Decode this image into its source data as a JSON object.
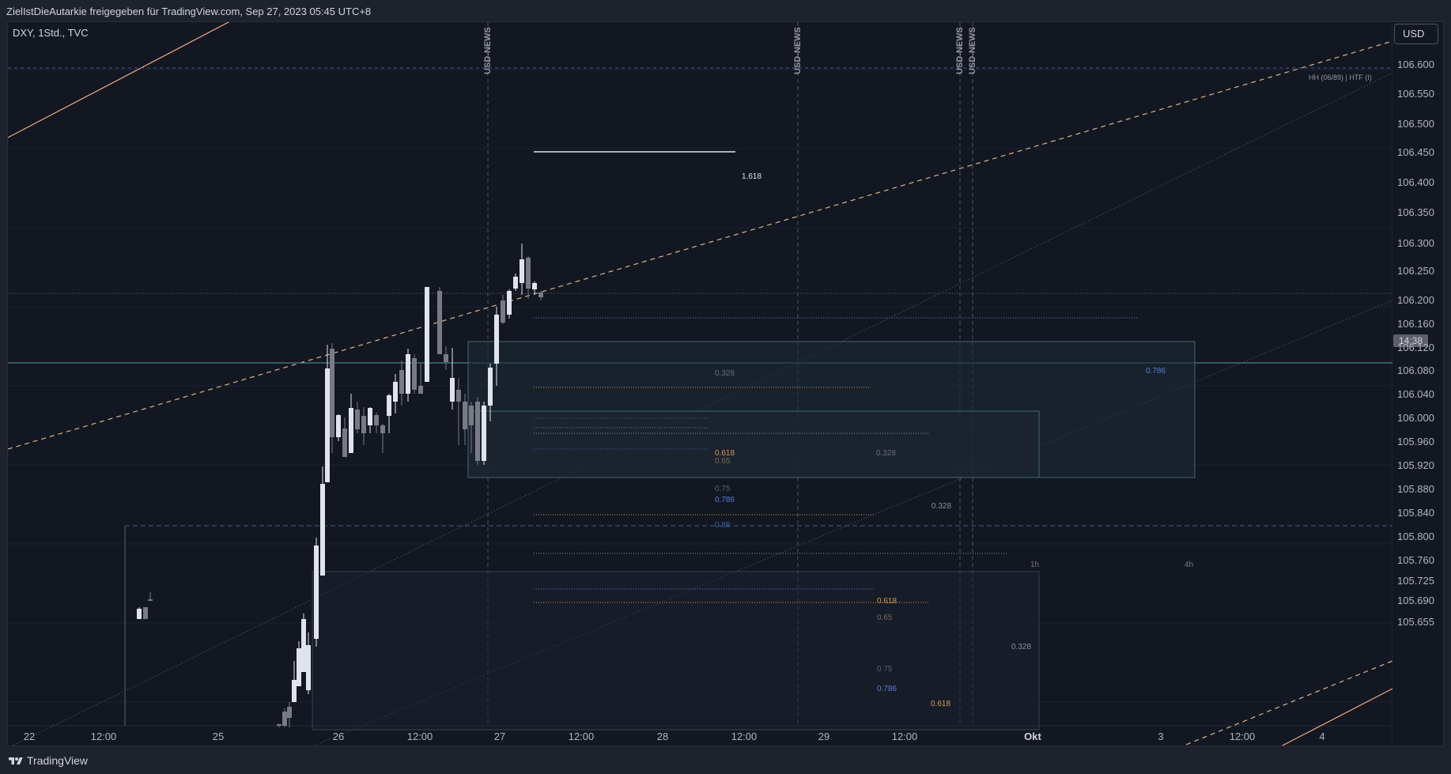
{
  "header": {
    "attribution": "ZielIstDieAutarkie freigegeben für TradingView.com, Sep 27, 2023 05:45 UTC+8"
  },
  "chart": {
    "symbol_label": "DXY, 1Std., TVC",
    "currency_button": "USD",
    "countdown": "14:38",
    "price_axis": [
      "106.600",
      "106.550",
      "106.500",
      "106.450",
      "106.400",
      "106.350",
      "106.300",
      "106.250",
      "106.200",
      "106.160",
      "106.120",
      "106.080",
      "106.040",
      "106.000",
      "105.960",
      "105.920",
      "105.880",
      "105.840",
      "105.800",
      "105.760",
      "105.725",
      "105.690",
      "105.655"
    ],
    "time_axis": [
      {
        "label": "22",
        "bold": false
      },
      {
        "label": "12:00",
        "bold": false
      },
      {
        "label": "25",
        "bold": false
      },
      {
        "label": "26",
        "bold": false
      },
      {
        "label": "12:00",
        "bold": false
      },
      {
        "label": "27",
        "bold": false
      },
      {
        "label": "12:00",
        "bold": false
      },
      {
        "label": "28",
        "bold": false
      },
      {
        "label": "12:00",
        "bold": false
      },
      {
        "label": "29",
        "bold": false
      },
      {
        "label": "12:00",
        "bold": false
      },
      {
        "label": "Okt",
        "bold": true
      },
      {
        "label": "3",
        "bold": false
      },
      {
        "label": "12:00",
        "bold": false
      },
      {
        "label": "4",
        "bold": false
      }
    ],
    "news_labels": [
      "USD-NEWS",
      "USD-NEWS",
      "USD-NEWS",
      "USD-NEWS"
    ],
    "hh_label": "HH (06/89) | HTF (I)",
    "fib_labels": {
      "f1618": "1.618",
      "a0328": "0.328",
      "a0786": "0.786",
      "b0618": "0.618",
      "b065": "0.65",
      "b0328": "0.328",
      "c075": "0.75",
      "c0786": "0.786",
      "c0328": "0.328",
      "c088": "0.88",
      "d0618": "0.618",
      "d065": "0.65",
      "d0328": "0.328",
      "e075": "0.75",
      "e0786": "0.786",
      "e0618": "0.618"
    },
    "zone_labels": {
      "z1": "1h",
      "z2": "4h"
    },
    "colors": {
      "background": "#131722",
      "candle_up": "#e0e3eb",
      "candle_down": "#787b86",
      "channel_orange": "#f0a88a",
      "fib_orange": "#d59a52",
      "fib_blue": "#5b7fd6"
    }
  },
  "footer": {
    "brand": "TradingView"
  }
}
